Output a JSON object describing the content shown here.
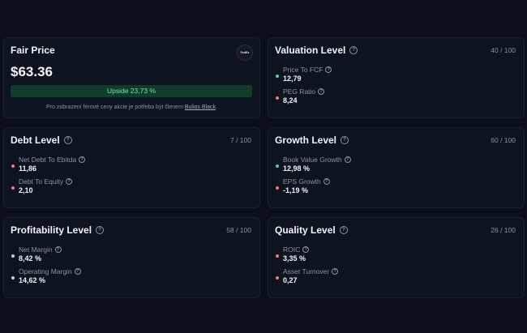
{
  "colors": {
    "green": "#4fd49a",
    "red": "#f07c6c",
    "neutral": "#c7cbd4"
  },
  "fair_price": {
    "title": "Fair Price",
    "price": "$63.36",
    "upside": "Upside 23,73 %",
    "note_prefix": "Pro zobrazení férové ceny akcie je potřeba být členem",
    "note_link": "Bulios Black",
    "note_suffix": ".",
    "logo_text": "FedEx"
  },
  "valuation": {
    "title": "Valuation Level",
    "score": "40 / 100",
    "metrics": [
      {
        "label": "Price To FCF",
        "value": "12,79",
        "status": "green"
      },
      {
        "label": "PEG Ratio",
        "value": "8,24",
        "status": "red"
      }
    ]
  },
  "debt": {
    "title": "Debt Level",
    "score": "7 / 100",
    "metrics": [
      {
        "label": "Net Debt To Ebitda",
        "value": "11,86",
        "status": "red"
      },
      {
        "label": "Debt To Equity",
        "value": "2,10",
        "status": "red"
      }
    ]
  },
  "growth": {
    "title": "Growth Level",
    "score": "60 / 100",
    "metrics": [
      {
        "label": "Book Value Growth",
        "value": "12,98 %",
        "status": "green"
      },
      {
        "label": "EPS Growth",
        "value": "-1,19 %",
        "status": "red"
      }
    ]
  },
  "profitability": {
    "title": "Profitability Level",
    "score": "58 / 100",
    "metrics": [
      {
        "label": "Net Margin",
        "value": "8,42 %",
        "status": "neutral"
      },
      {
        "label": "Operating Margin",
        "value": "14,62 %",
        "status": "neutral"
      }
    ]
  },
  "quality": {
    "title": "Quality Level",
    "score": "26 / 100",
    "metrics": [
      {
        "label": "ROIC",
        "value": "3,35 %",
        "status": "red"
      },
      {
        "label": "Asset Turnover",
        "value": "0,27",
        "status": "red"
      }
    ]
  }
}
